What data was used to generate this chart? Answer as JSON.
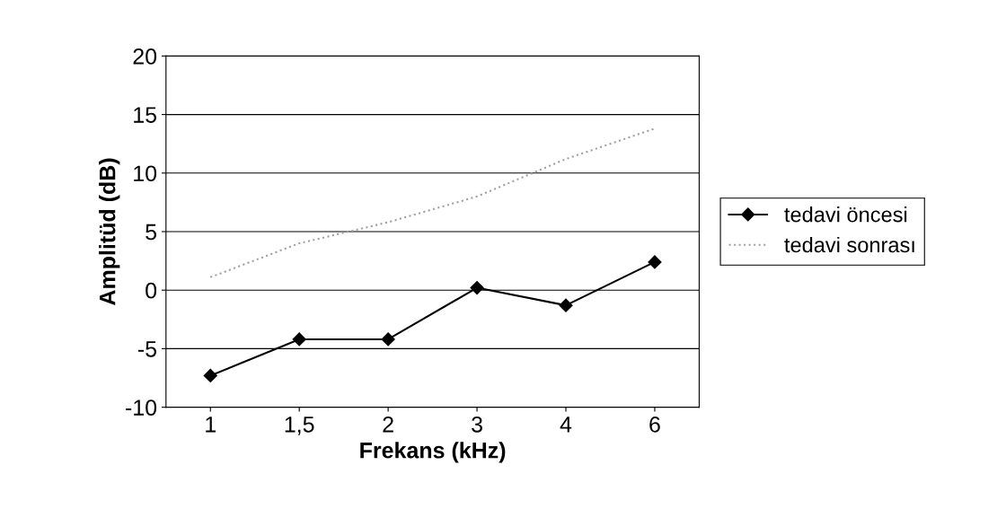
{
  "chart_data": {
    "type": "line",
    "xlabel": "Frekans (kHz)",
    "ylabel": "Amplitüd (dB)",
    "categories": [
      "1",
      "1,5",
      "2",
      "3",
      "4",
      "6"
    ],
    "series": [
      {
        "name": "tedavi öncesi",
        "color": "#000000",
        "values": [
          -7.3,
          -4.2,
          -4.2,
          0.2,
          -1.3,
          2.4
        ],
        "marker": "diamond",
        "line_style": "solid"
      },
      {
        "name": "tedavi sonrası",
        "color": "#a0a0a0",
        "values": [
          1.1,
          4.0,
          5.8,
          8.0,
          11.2,
          13.8
        ],
        "marker": "none",
        "line_style": "dotted"
      }
    ],
    "ylim": [
      -10,
      20
    ],
    "yticks": [
      -10,
      -5,
      0,
      5,
      10,
      15,
      20
    ],
    "grid": "y",
    "legend": "right"
  }
}
